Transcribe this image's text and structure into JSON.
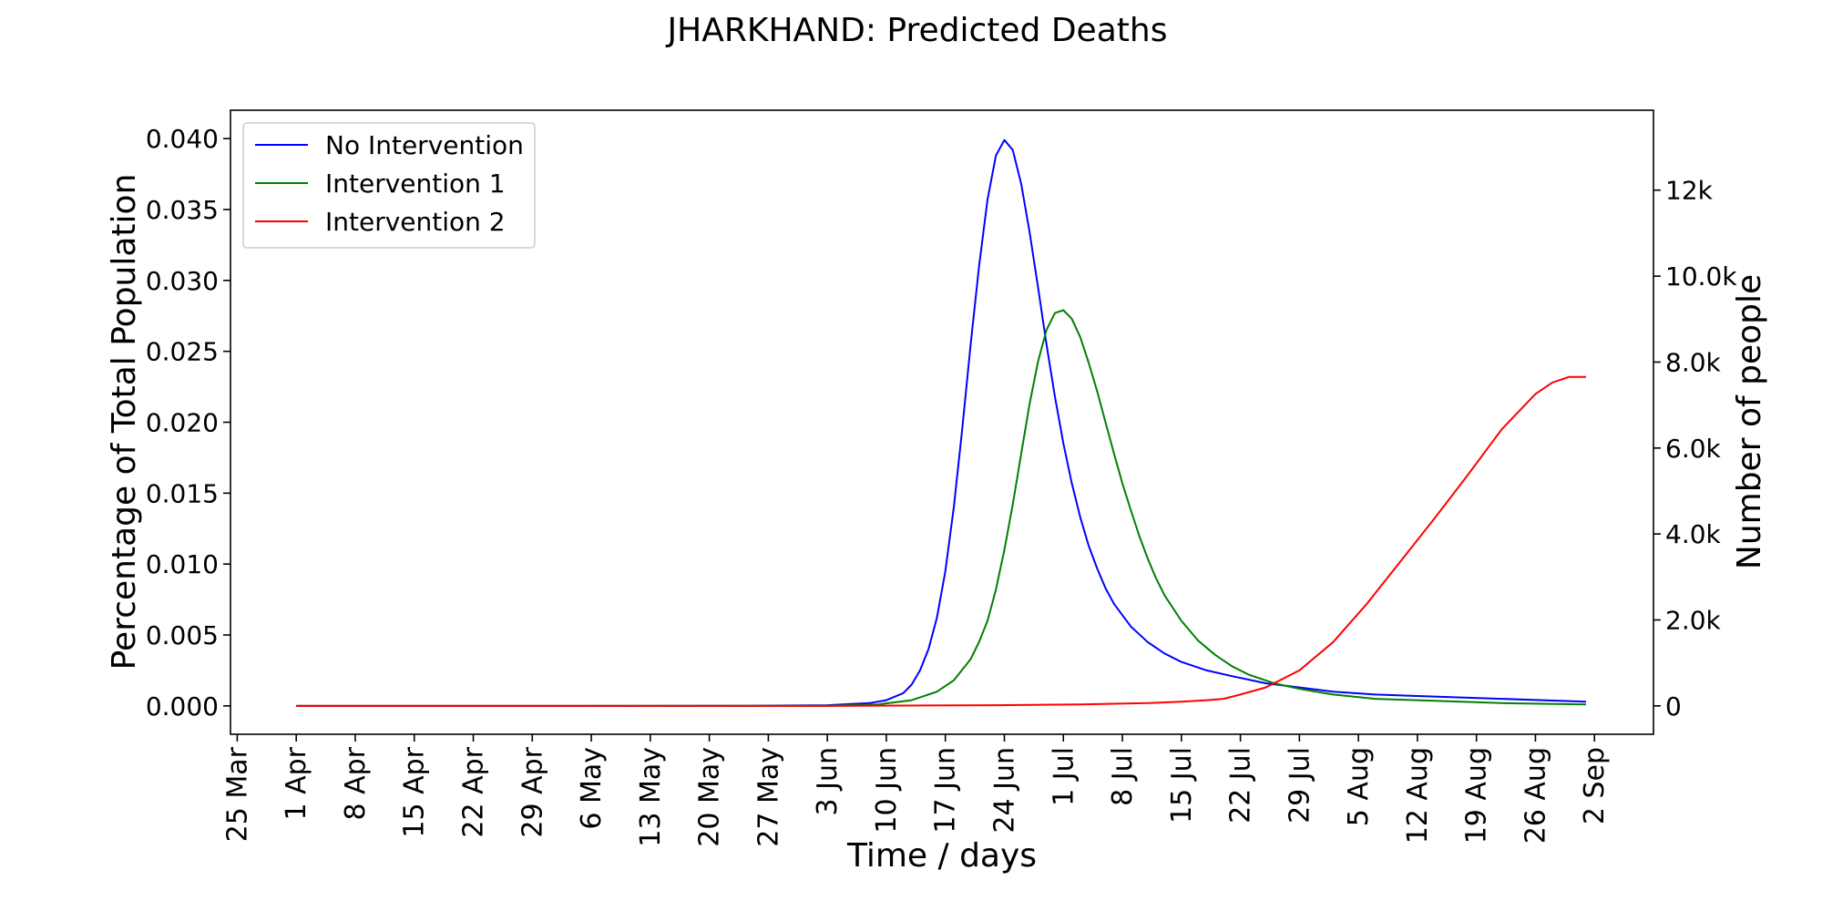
{
  "chart_data": {
    "type": "line",
    "title": "JHARKHAND: Predicted Deaths",
    "xlabel": "Time / days",
    "ylabel": "Percentage of Total Population",
    "ylabel_right": "Number of people",
    "x_ticks": [
      "25 Mar",
      "1 Apr",
      "8 Apr",
      "15 Apr",
      "22 Apr",
      "29 Apr",
      "6 May",
      "13 May",
      "20 May",
      "27 May",
      "3 Jun",
      "10 Jun",
      "17 Jun",
      "24 Jun",
      "1 Jul",
      "8 Jul",
      "15 Jul",
      "22 Jul",
      "29 Jul",
      "5 Aug",
      "12 Aug",
      "19 Aug",
      "26 Aug",
      "2 Sep"
    ],
    "x_tick_days": [
      0,
      7,
      14,
      21,
      28,
      35,
      42,
      49,
      56,
      63,
      70,
      77,
      84,
      91,
      98,
      105,
      112,
      119,
      126,
      133,
      140,
      147,
      154,
      161
    ],
    "xlim": [
      -0.8,
      168
    ],
    "y_ticks": [
      "0.000",
      "0.005",
      "0.010",
      "0.015",
      "0.020",
      "0.025",
      "0.030",
      "0.035",
      "0.040"
    ],
    "y_tick_values": [
      0,
      0.005,
      0.01,
      0.015,
      0.02,
      0.025,
      0.03,
      0.035,
      0.04
    ],
    "ylim": [
      -0.002,
      0.042
    ],
    "y2_ticks": [
      "0",
      "2.0k",
      "4.0k",
      "6.0k",
      "8.0k",
      "10.0k",
      "12k"
    ],
    "y2_tick_values": [
      0,
      2000,
      4000,
      6000,
      8000,
      10000,
      12000
    ],
    "y2lim": [
      -660,
      13860
    ],
    "legend_position": "top-left",
    "grid": false,
    "series": [
      {
        "name": "No Intervention",
        "color": "#0000ff",
        "x": [
          7,
          40,
          60,
          70,
          75,
          77,
          79,
          80,
          81,
          82,
          83,
          84,
          85,
          86,
          87,
          88,
          89,
          90,
          91,
          92,
          93,
          94,
          95,
          96,
          97,
          98,
          99,
          100,
          101,
          102,
          103,
          104,
          106,
          108,
          110,
          112,
          115,
          118,
          122,
          126,
          130,
          135,
          140,
          150,
          160
        ],
        "y": [
          0,
          0,
          1e-05,
          5e-05,
          0.0002,
          0.0004,
          0.0009,
          0.0015,
          0.0025,
          0.004,
          0.0062,
          0.0095,
          0.014,
          0.0195,
          0.0255,
          0.031,
          0.0357,
          0.0388,
          0.0399,
          0.0392,
          0.0368,
          0.0334,
          0.0295,
          0.0255,
          0.0218,
          0.0185,
          0.0157,
          0.0133,
          0.0113,
          0.0097,
          0.0083,
          0.0072,
          0.0056,
          0.0045,
          0.0037,
          0.0031,
          0.0025,
          0.0021,
          0.0016,
          0.0013,
          0.001,
          0.0008,
          0.0007,
          0.0005,
          0.0003
        ]
      },
      {
        "name": "Intervention 1",
        "color": "#008000",
        "x": [
          7,
          50,
          70,
          76,
          80,
          83,
          85,
          87,
          88,
          89,
          90,
          91,
          92,
          93,
          94,
          95,
          96,
          97,
          98,
          99,
          100,
          101,
          102,
          103,
          104,
          105,
          106,
          107,
          108,
          109,
          110,
          112,
          114,
          116,
          118,
          120,
          123,
          126,
          130,
          135,
          140,
          150,
          160
        ],
        "y": [
          0,
          0,
          1e-05,
          0.0001,
          0.0004,
          0.001,
          0.0018,
          0.0033,
          0.0045,
          0.006,
          0.0082,
          0.011,
          0.0142,
          0.0178,
          0.0213,
          0.0243,
          0.0265,
          0.0277,
          0.0279,
          0.0273,
          0.026,
          0.0242,
          0.0222,
          0.02,
          0.0178,
          0.0157,
          0.0138,
          0.012,
          0.0104,
          0.009,
          0.0078,
          0.006,
          0.0046,
          0.0036,
          0.0028,
          0.0022,
          0.0016,
          0.0012,
          0.0008,
          0.0005,
          0.0004,
          0.0002,
          0.0001
        ]
      },
      {
        "name": "Intervention 2",
        "color": "#ff0000",
        "x": [
          7,
          70,
          90,
          100,
          108,
          112,
          115,
          117,
          119,
          122,
          126,
          130,
          134,
          138,
          142,
          146,
          150,
          154,
          156,
          158,
          160
        ],
        "y": [
          0,
          0,
          5e-05,
          0.0001,
          0.0002,
          0.0003,
          0.0004,
          0.0005,
          0.0008,
          0.0013,
          0.0025,
          0.0045,
          0.0072,
          0.0102,
          0.0132,
          0.0163,
          0.0195,
          0.022,
          0.0228,
          0.0232,
          0.0232
        ]
      }
    ]
  }
}
